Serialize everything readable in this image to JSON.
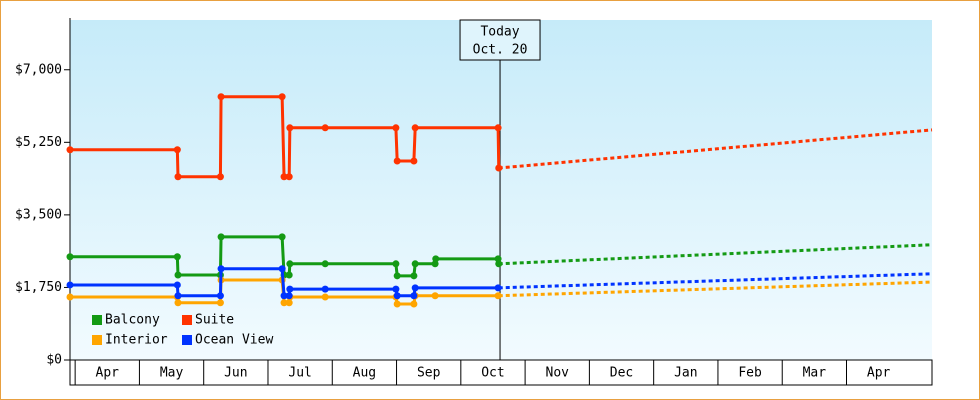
{
  "chart_data": {
    "type": "line",
    "months": [
      "Apr",
      "May",
      "Jun",
      "Jul",
      "Aug",
      "Sep",
      "Oct",
      "Nov",
      "Dec",
      "Jan",
      "Feb",
      "Mar",
      "Apr"
    ],
    "xlim": [
      -0.08,
      13.33
    ],
    "ylim": [
      0,
      8200
    ],
    "yticks": [
      {
        "value": 0,
        "label": "$0"
      },
      {
        "value": 1750,
        "label": "$1,750"
      },
      {
        "value": 3500,
        "label": "$3,500"
      },
      {
        "value": 5250,
        "label": "$5,250"
      },
      {
        "value": 7000,
        "label": "$7,000"
      }
    ],
    "today": {
      "label": "Today",
      "date": "Oct. 20",
      "x": 6.61
    },
    "legend": "lower left",
    "series": [
      {
        "name": "Balcony",
        "color": "#149a14",
        "x": [
          -0.08,
          1.59,
          1.6,
          2.26,
          2.27,
          3.22,
          3.25,
          3.33,
          3.34,
          3.89,
          4.99,
          5.01,
          5.27,
          5.29,
          5.6,
          5.61,
          6.58,
          6.59
        ],
        "values": [
          2490,
          2490,
          2050,
          2050,
          2970,
          2970,
          2050,
          2050,
          2320,
          2320,
          2320,
          2030,
          2030,
          2320,
          2320,
          2440,
          2440,
          2320
        ],
        "forecast_x": [
          6.59,
          13.33
        ],
        "forecast_values": [
          2320,
          2780
        ]
      },
      {
        "name": "Suite",
        "color": "#ff3300",
        "x": [
          -0.08,
          1.59,
          1.6,
          2.26,
          2.27,
          3.22,
          3.25,
          3.33,
          3.34,
          3.89,
          4.99,
          5.01,
          5.27,
          5.29,
          6.58,
          6.59
        ],
        "values": [
          5070,
          5070,
          4420,
          4420,
          6350,
          6350,
          4420,
          4420,
          5600,
          5600,
          5600,
          4800,
          4800,
          5600,
          5600,
          4630
        ],
        "forecast_x": [
          6.59,
          13.33
        ],
        "forecast_values": [
          4630,
          5550
        ]
      },
      {
        "name": "Interior",
        "color": "#ffa500",
        "x": [
          -0.08,
          1.59,
          1.6,
          2.26,
          2.27,
          3.22,
          3.25,
          3.33,
          3.34,
          3.89,
          4.99,
          5.01,
          5.27,
          5.29,
          5.6,
          6.58
        ],
        "values": [
          1520,
          1520,
          1380,
          1380,
          1930,
          1930,
          1380,
          1380,
          1520,
          1520,
          1520,
          1350,
          1350,
          1550,
          1550,
          1550
        ],
        "forecast_x": [
          6.59,
          13.33
        ],
        "forecast_values": [
          1550,
          1880
        ]
      },
      {
        "name": "Ocean View",
        "color": "#0033ff",
        "x": [
          -0.08,
          1.59,
          1.6,
          2.26,
          2.27,
          3.22,
          3.25,
          3.33,
          3.34,
          3.89,
          4.99,
          5.01,
          5.27,
          5.29,
          6.58
        ],
        "values": [
          1810,
          1810,
          1550,
          1550,
          2200,
          2200,
          1550,
          1550,
          1710,
          1710,
          1710,
          1550,
          1550,
          1740,
          1740
        ],
        "forecast_x": [
          6.59,
          13.33
        ],
        "forecast_values": [
          1740,
          2080
        ]
      }
    ]
  }
}
